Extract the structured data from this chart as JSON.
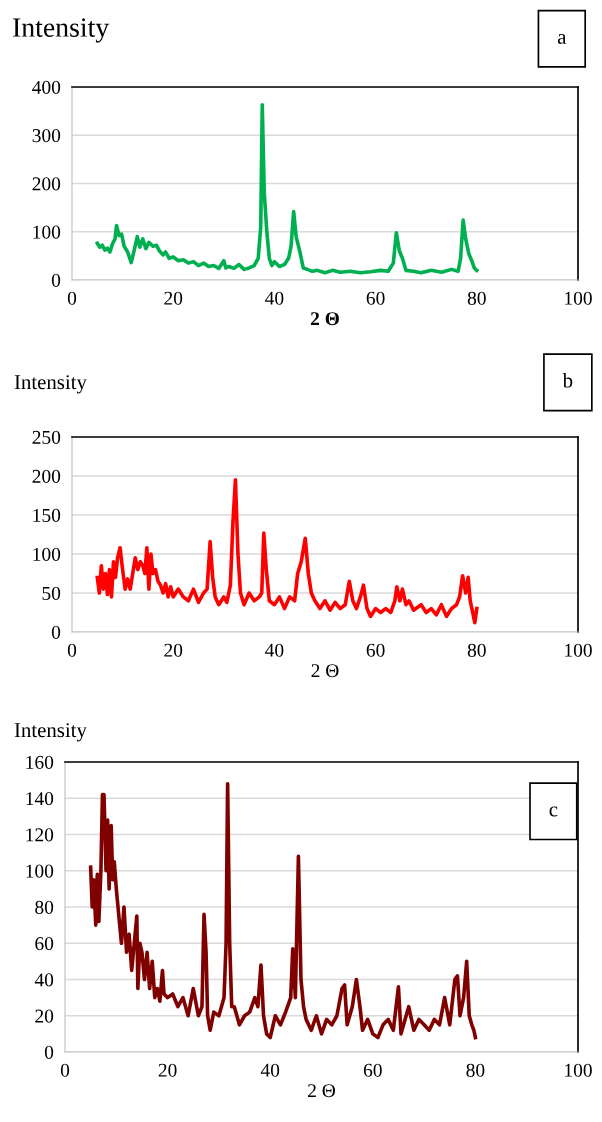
{
  "chart_data": [
    {
      "type": "line",
      "title": "Intensity",
      "xlabel": "2 Θ",
      "xlim": [
        0,
        100
      ],
      "xticks": [
        0,
        20,
        40,
        60,
        80,
        100
      ],
      "ylim": [
        0,
        400
      ],
      "yticks": [
        0,
        100,
        200,
        300,
        400
      ],
      "grid": "y",
      "annotations": [
        "a"
      ],
      "series": [
        {
          "color": "#00b050",
          "x": [
            5,
            5.5,
            6,
            6.5,
            7,
            7.5,
            8,
            8.5,
            8.8,
            9.3,
            9.8,
            10.3,
            11,
            11.7,
            12.3,
            12.9,
            13.4,
            14,
            14.6,
            15.2,
            16,
            16.7,
            17.3,
            18,
            18.5,
            19.2,
            20,
            21,
            22,
            23,
            24,
            25,
            26,
            27,
            28,
            29,
            30,
            30.4,
            31,
            32,
            33,
            34,
            35,
            36,
            36.8,
            37.3,
            37.6,
            38,
            38.5,
            39,
            39.5,
            40,
            41,
            42,
            42.8,
            43.3,
            43.8,
            44.3,
            45,
            45.7,
            46.5,
            47.5,
            48.5,
            50,
            51.5,
            53,
            55,
            57,
            59,
            61,
            62.5,
            63.5,
            64.1,
            64.7,
            65.3,
            66,
            67.5,
            69,
            71,
            73,
            75,
            76.3,
            76.8,
            77.3,
            77.8,
            78.4,
            79,
            79.5,
            80
          ],
          "values": [
            76,
            68,
            72,
            62,
            66,
            58,
            75,
            85,
            113,
            92,
            95,
            70,
            58,
            36,
            62,
            90,
            68,
            85,
            65,
            78,
            70,
            72,
            60,
            52,
            58,
            45,
            48,
            40,
            42,
            35,
            38,
            30,
            35,
            28,
            30,
            24,
            40,
            25,
            28,
            24,
            32,
            22,
            25,
            30,
            45,
            110,
            363,
            180,
            100,
            45,
            30,
            38,
            28,
            32,
            45,
            70,
            142,
            90,
            60,
            25,
            22,
            18,
            20,
            15,
            20,
            16,
            18,
            15,
            17,
            20,
            18,
            35,
            98,
            60,
            45,
            20,
            18,
            15,
            20,
            16,
            22,
            18,
            45,
            124,
            85,
            55,
            40,
            25,
            20
          ]
        }
      ]
    },
    {
      "type": "line",
      "title": "Intensity",
      "xlabel": "2 Θ",
      "xlim": [
        0,
        100
      ],
      "xticks": [
        0,
        20,
        40,
        60,
        80,
        100
      ],
      "ylim": [
        0,
        250
      ],
      "yticks": [
        0,
        50,
        100,
        150,
        200,
        250
      ],
      "grid": "y",
      "annotations": [
        "b"
      ],
      "series": [
        {
          "color": "#ff0000",
          "x": [
            5,
            5.4,
            5.8,
            6.2,
            6.6,
            7,
            7.4,
            7.8,
            8.2,
            8.6,
            9,
            9.5,
            10,
            10.5,
            11,
            11.5,
            12,
            12.5,
            13,
            13.5,
            14,
            14.4,
            14.8,
            15.2,
            15.6,
            16,
            16.5,
            17,
            17.5,
            18,
            18.5,
            19,
            19.5,
            20,
            21,
            22,
            23,
            24,
            25,
            26,
            26.7,
            27.3,
            27.8,
            28.3,
            29,
            30,
            30.6,
            31.3,
            31.8,
            32.3,
            32.8,
            33.3,
            34,
            35,
            36,
            37,
            37.5,
            37.9,
            38.4,
            39,
            40,
            41,
            42,
            43,
            44,
            44.6,
            45.3,
            46.1,
            46.7,
            47.3,
            48,
            49,
            50,
            51,
            52,
            53,
            54,
            54.8,
            55.5,
            56.2,
            57,
            57.6,
            58.3,
            59,
            60,
            61,
            62,
            63,
            63.8,
            64.2,
            64.8,
            65.3,
            66,
            66.6,
            67.5,
            69,
            70,
            71,
            72,
            73,
            74,
            75,
            76,
            76.6,
            77.2,
            77.8,
            78.3,
            78.7,
            79.2,
            79.6,
            80
          ],
          "values": [
            70,
            50,
            85,
            55,
            75,
            48,
            80,
            45,
            90,
            70,
            95,
            108,
            80,
            55,
            68,
            55,
            75,
            95,
            80,
            90,
            85,
            75,
            108,
            55,
            100,
            75,
            80,
            65,
            60,
            50,
            62,
            45,
            58,
            45,
            55,
            45,
            40,
            55,
            38,
            50,
            55,
            116,
            70,
            45,
            35,
            45,
            38,
            60,
            140,
            195,
            100,
            50,
            35,
            50,
            40,
            45,
            50,
            127,
            80,
            40,
            35,
            45,
            30,
            45,
            40,
            75,
            90,
            120,
            75,
            50,
            40,
            30,
            40,
            28,
            38,
            30,
            35,
            65,
            40,
            30,
            45,
            60,
            30,
            20,
            30,
            25,
            30,
            25,
            40,
            58,
            40,
            55,
            35,
            40,
            28,
            35,
            25,
            30,
            22,
            35,
            20,
            30,
            35,
            45,
            72,
            50,
            70,
            40,
            25,
            12,
            30
          ]
        }
      ]
    },
    {
      "type": "line",
      "title": "Intensity",
      "xlabel": "2 Θ",
      "xlim": [
        0,
        100
      ],
      "xticks": [
        0,
        20,
        40,
        60,
        80,
        100
      ],
      "ylim": [
        0,
        160
      ],
      "yticks": [
        0,
        20,
        40,
        60,
        80,
        100,
        120,
        140,
        160
      ],
      "grid": "y",
      "annotations": [
        "c"
      ],
      "series": [
        {
          "color": "#800000",
          "x": [
            5,
            5.3,
            5.6,
            6,
            6.3,
            6.6,
            7,
            7.3,
            7.6,
            8,
            8.3,
            8.6,
            9,
            9.3,
            9.6,
            10,
            10.5,
            11,
            11.5,
            12,
            12.5,
            13,
            13.5,
            14,
            14.2,
            14.6,
            15,
            15.5,
            16,
            16.5,
            17,
            17.5,
            18,
            18.5,
            19,
            19.3,
            20,
            21,
            22,
            23,
            24,
            25,
            26,
            26.7,
            27.1,
            27.5,
            27.8,
            28.3,
            29,
            30,
            31,
            31.4,
            31.7,
            32.1,
            32.5,
            33,
            34,
            35,
            36,
            37,
            37.6,
            38.2,
            38.7,
            39.3,
            40,
            41,
            42,
            43,
            44,
            44.4,
            44.9,
            45.5,
            46,
            46.5,
            47,
            48,
            49,
            50,
            51,
            52,
            53,
            54,
            54.5,
            55,
            56,
            56.8,
            57.5,
            58,
            59,
            60,
            61,
            62,
            63,
            64,
            65,
            65.5,
            66,
            67,
            68,
            69,
            70,
            71,
            72,
            73,
            74,
            75,
            76,
            76.5,
            77,
            77.7,
            78.3,
            78.8,
            79.3,
            79.7,
            80
          ],
          "values": [
            102,
            80,
            95,
            70,
            98,
            72,
            100,
            142,
            142,
            100,
            128,
            90,
            125,
            95,
            105,
            90,
            75,
            60,
            80,
            55,
            65,
            45,
            60,
            75,
            35,
            60,
            55,
            40,
            55,
            35,
            50,
            30,
            35,
            28,
            45,
            32,
            30,
            32,
            25,
            30,
            20,
            35,
            20,
            25,
            76,
            55,
            20,
            12,
            22,
            20,
            30,
            60,
            148,
            60,
            25,
            25,
            15,
            20,
            22,
            30,
            25,
            48,
            20,
            10,
            8,
            20,
            15,
            22,
            30,
            57,
            30,
            108,
            40,
            25,
            18,
            12,
            20,
            10,
            18,
            15,
            20,
            35,
            37,
            15,
            25,
            40,
            25,
            12,
            18,
            10,
            8,
            15,
            18,
            12,
            36,
            10,
            15,
            25,
            12,
            18,
            15,
            12,
            18,
            15,
            30,
            15,
            40,
            42,
            20,
            30,
            50,
            20,
            15,
            12,
            8
          ]
        }
      ]
    }
  ]
}
